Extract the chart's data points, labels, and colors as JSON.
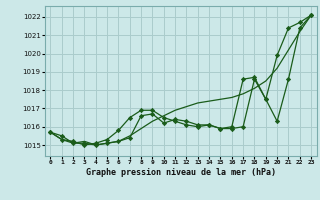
{
  "title": "Graphe pression niveau de la mer (hPa)",
  "background_color": "#cce8e8",
  "grid_color": "#aacccc",
  "line_color": "#1a5c1a",
  "x_labels": [
    "0",
    "1",
    "2",
    "3",
    "4",
    "5",
    "6",
    "7",
    "8",
    "9",
    "10",
    "11",
    "12",
    "13",
    "14",
    "15",
    "16",
    "17",
    "18",
    "19",
    "20",
    "21",
    "22",
    "23"
  ],
  "ylim": [
    1014.4,
    1022.6
  ],
  "yticks": [
    1015,
    1016,
    1017,
    1018,
    1019,
    1020,
    1021,
    1022
  ],
  "series_smooth": [
    1015.7,
    1015.3,
    1015.1,
    1015.2,
    1015.0,
    1015.1,
    1015.2,
    1015.5,
    1015.9,
    1016.3,
    1016.6,
    1016.9,
    1017.1,
    1017.3,
    1017.4,
    1017.5,
    1017.6,
    1017.8,
    1018.1,
    1018.5,
    1019.2,
    1020.2,
    1021.2,
    1022.1
  ],
  "series_markers1": [
    1015.7,
    1015.5,
    1015.1,
    1015.1,
    1015.0,
    1015.1,
    1015.2,
    1015.4,
    1016.6,
    1016.7,
    1016.2,
    1016.4,
    1016.3,
    1016.1,
    1016.1,
    1015.9,
    1015.9,
    1016.0,
    1018.6,
    1017.5,
    1016.3,
    1018.6,
    1021.4,
    1022.1
  ],
  "series_markers2": [
    1015.7,
    1015.3,
    1015.2,
    1015.0,
    1015.1,
    1015.3,
    1015.8,
    1016.5,
    1016.9,
    1016.9,
    1016.5,
    1016.3,
    1016.1,
    1016.0,
    1016.1,
    1015.9,
    1016.0,
    1018.6,
    1018.7,
    1017.5,
    1019.9,
    1021.4,
    1021.7,
    1022.1
  ]
}
